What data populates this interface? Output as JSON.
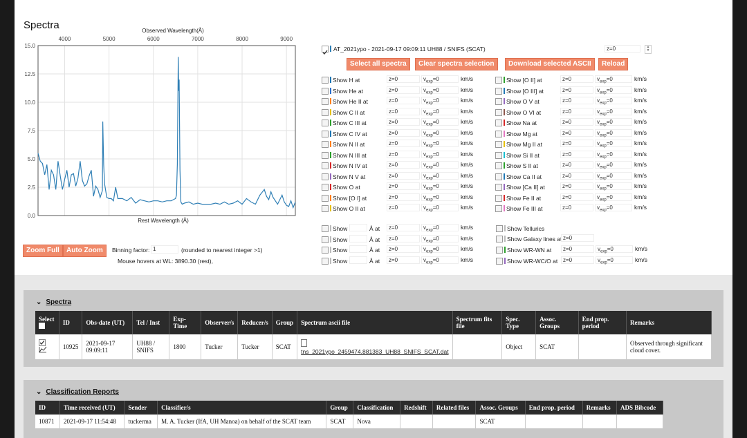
{
  "title": "Spectra",
  "chart_data": {
    "type": "line",
    "xlabel_top": "Observed Wavelength(Å)",
    "xlabel_bottom": "Rest Wavelength (Å)",
    "top_ticks": [
      "4000",
      "5000",
      "6000",
      "7000",
      "8000",
      "9000"
    ],
    "top_tick_values": [
      4000,
      5000,
      6000,
      7000,
      8000,
      9000
    ],
    "xlim_observed": [
      3400,
      9200
    ],
    "y_ticks": [
      "15.0",
      "12.5",
      "10.0",
      "7.5",
      "5.0",
      "2.5",
      "0.0"
    ],
    "ylim": [
      0,
      15
    ],
    "grid": true,
    "series": [
      {
        "color": "#2f7fb5",
        "x": [
          3400,
          3450,
          3500,
          3550,
          3600,
          3650,
          3700,
          3750,
          3800,
          3850,
          3900,
          3950,
          4000,
          4050,
          4100,
          4150,
          4200,
          4250,
          4300,
          4350,
          4400,
          4450,
          4500,
          4550,
          4600,
          4650,
          4700,
          4750,
          4800,
          4850,
          4860,
          4880,
          4900,
          4950,
          5000,
          5050,
          5100,
          5150,
          5200,
          5300,
          5400,
          5500,
          5600,
          5700,
          5800,
          5900,
          6000,
          6100,
          6200,
          6300,
          6400,
          6500,
          6520,
          6540,
          6560,
          6570,
          6580,
          6600,
          6620,
          6650,
          6700,
          6800,
          6900,
          7000,
          7100,
          7200,
          7300,
          7400,
          7500,
          7600,
          7700,
          7800,
          7900,
          8000,
          8100,
          8200,
          8300,
          8400,
          8500,
          8550,
          8600,
          8650,
          8700,
          8800,
          8900,
          8950,
          9000,
          9050,
          9100,
          9150,
          9200
        ],
        "y": [
          5.5,
          4.8,
          4.6,
          3.6,
          4.5,
          2.3,
          4.0,
          3.6,
          2.3,
          4.8,
          3.5,
          2.3,
          3.2,
          4.0,
          2.5,
          3.6,
          3.7,
          2.6,
          3.3,
          4.8,
          3.1,
          2.6,
          2.8,
          3.5,
          4.0,
          1.7,
          2.6,
          2.3,
          1.6,
          2.2,
          8.3,
          4.5,
          2.8,
          1.6,
          1.5,
          1.5,
          1.3,
          2.5,
          1.5,
          1.5,
          1.3,
          1.6,
          1.1,
          1.4,
          1.3,
          1.2,
          1.3,
          1.3,
          1.2,
          1.3,
          1.3,
          1.5,
          1.8,
          4.5,
          14.0,
          11.0,
          12.0,
          4.0,
          1.2,
          1.0,
          1.1,
          1.2,
          1.0,
          1.1,
          1.0,
          1.0,
          1.0,
          1.1,
          1.0,
          1.2,
          1.0,
          1.1,
          1.3,
          1.0,
          1.5,
          1.2,
          1.0,
          1.8,
          2.3,
          1.7,
          1.4,
          2.1,
          1.6,
          1.0,
          1.8,
          1.2,
          0.9,
          0.8,
          1.3,
          0.7,
          1.2
        ]
      }
    ]
  },
  "controls": {
    "zoom_full": "Zoom Full",
    "auto_zoom": "Auto Zoom",
    "binning_label": "Binning factor:",
    "binning_value": "1",
    "binning_note": "(rounded to nearest integer >1)",
    "hover_text": "Mouse hovers at WL: 3890.30 (rest),"
  },
  "spectrum_toggle": {
    "label": "AT_2021ypo - 2021-09-17 09:09:11 UH88 / SNIFS (SCAT)",
    "z_value": "z=0",
    "swatch": "#2f7fb5"
  },
  "buttons": {
    "select_all": "Select all spectra",
    "clear": "Clear spectra selection",
    "download": "Download selected ASCII",
    "reload": "Reload"
  },
  "line_fields": {
    "z": "z=0",
    "vexp": "v",
    "vexp_sub": "exp",
    "vexp_val": "=0",
    "units": "km/s"
  },
  "lines_left": [
    {
      "label": "Show H at",
      "color": "#1f77b4"
    },
    {
      "label": "Show He at",
      "color": "#2b6fcc"
    },
    {
      "label": "Show He II at",
      "color": "#ff7f0e"
    },
    {
      "label": "Show C II at",
      "color": "#e6c000"
    },
    {
      "label": "Show C III at",
      "color": "#2ca02c"
    },
    {
      "label": "Show C IV at",
      "color": "#1f77b4"
    },
    {
      "label": "Show N II at",
      "color": "#ff7f0e"
    },
    {
      "label": "Show N III at",
      "color": "#2ca02c"
    },
    {
      "label": "Show N IV at",
      "color": "#d62728"
    },
    {
      "label": "Show N V at",
      "color": "#9467bd"
    },
    {
      "label": "Show O at",
      "color": "#d62728"
    },
    {
      "label": "Show [O I] at",
      "color": "#ff7f0e"
    },
    {
      "label": "Show O II at",
      "color": "#e6c000"
    }
  ],
  "lines_right": [
    {
      "label": "Show [O II] at",
      "color": "#2ca02c"
    },
    {
      "label": "Show [O III] at",
      "color": "#1f77b4"
    },
    {
      "label": "Show O V at",
      "color": "#9467bd"
    },
    {
      "label": "Show O VI at",
      "color": "#8c564b"
    },
    {
      "label": "Show Na at",
      "color": "#d62728"
    },
    {
      "label": "Show Mg at",
      "color": "#e377c2"
    },
    {
      "label": "Show Mg II at",
      "color": "#e6c000"
    },
    {
      "label": "Show Si II at",
      "color": "#17becf"
    },
    {
      "label": "Show S II at",
      "color": "#2ca02c"
    },
    {
      "label": "Show Ca II at",
      "color": "#1f77b4"
    },
    {
      "label": "Show [Ca II] at",
      "color": "#9467bd"
    },
    {
      "label": "Show Fe II at",
      "color": "#d62728"
    },
    {
      "label": "Show Fe III at",
      "color": "#e377c2"
    }
  ],
  "custom_lines": {
    "show": "Show",
    "angstrom_at": "Å at"
  },
  "extra_right": {
    "tellurics": "Show Tellurics",
    "galaxy": "Show Galaxy lines at",
    "galaxy_z": "z=0",
    "wr_wn": "Show WR-WN at",
    "wr_wc": "Show WR-WC/O at"
  },
  "spectra_section": {
    "heading": "Spectra",
    "columns": [
      "Select",
      "ID",
      "Obs-date (UT)",
      "Tel / Inst",
      "Exp-Time",
      "Observer/s",
      "Reducer/s",
      "Group",
      "Spectrum ascii file",
      "Spectrum fits file",
      "Spec. Type",
      "Assoc. Groups",
      "End prop. period",
      "Remarks"
    ],
    "row": {
      "id": "10925",
      "obs_date": "2021-09-17 09:09:11",
      "tel_inst": "UH88 / SNIFS",
      "exp_time": "1800",
      "observer": "Tucker",
      "reducer": "Tucker",
      "group": "SCAT",
      "ascii_file": "tns_2021ypo_2459474.881383_UH88_SNIFS_SCAT.dat",
      "fits_file": "",
      "spec_type": "Object",
      "assoc_groups": "SCAT",
      "end_prop": "",
      "remarks": "Observed through significant cloud cover."
    }
  },
  "class_section": {
    "heading": "Classification Reports",
    "columns": [
      "ID",
      "Time received (UT)",
      "Sender",
      "Classifier/s",
      "Group",
      "Classification",
      "Redshift",
      "Related files",
      "Assoc. Groups",
      "End prop. period",
      "Remarks",
      "ADS Bibcode"
    ],
    "row": {
      "id": "10871",
      "time": "2021-09-17 11:54:48",
      "sender": "tuckerma",
      "classifier": "M. A. Tucker (IfA, UH Manoa) on behalf of the SCAT team",
      "group": "SCAT",
      "classification": "Nova",
      "redshift": "",
      "related": "",
      "assoc": "SCAT",
      "end_prop": "",
      "remarks": "",
      "ads": ""
    }
  }
}
